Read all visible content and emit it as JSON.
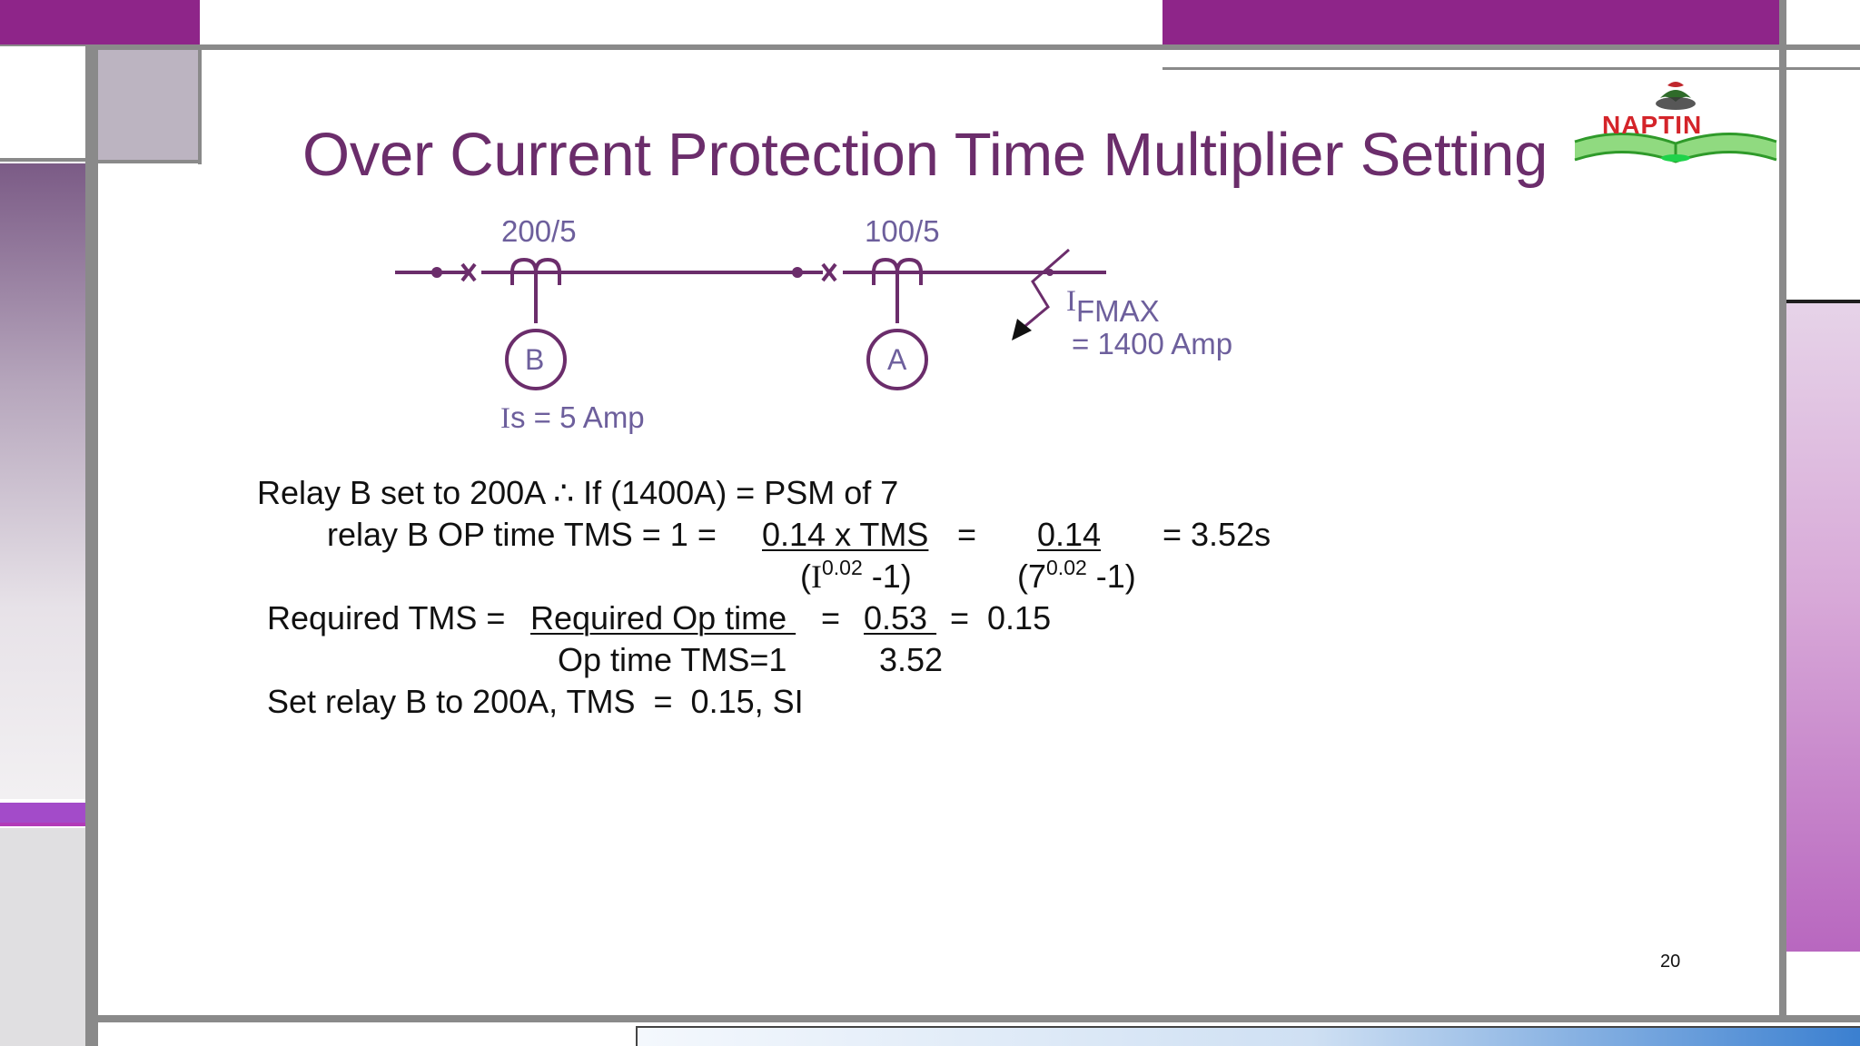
{
  "slide": {
    "title": "Over Current Protection Time Multiplier Setting",
    "page_number": "20",
    "logo_text": "NAPTIN",
    "colors": {
      "accent_purple": "#8e2589",
      "title_color": "#6b2d6b",
      "diagram_color": "#6b2d6b",
      "label_color": "#6d5f9c"
    }
  },
  "diagram": {
    "ct_b_ratio": "200/5",
    "ct_a_ratio": "100/5",
    "relay_b": "B",
    "relay_a": "A",
    "fault_symbol": "I",
    "fault_subscript": "FMAX",
    "fault_value": "= 1400 Amp",
    "is_symbol": "I",
    "is_label": "s = 5 Amp"
  },
  "equations": {
    "line1": "Relay B set to 200A ∴ If (1400A) = PSM of 7",
    "line2_prefix": "relay B OP time TMS = 1 = ",
    "line2_num1": "0.14 x TMS",
    "line2_eq": "=",
    "line2_num2": "0.14",
    "line2_result": "= 3.52s",
    "line3_den1_open": "(",
    "line3_den1_i": "I",
    "line3_den1_exp": "0.02",
    "line3_den1_close": " -1)",
    "line3_den2_open": "(7",
    "line3_den2_exp": "0.02",
    "line3_den2_close": " -1)",
    "line4_prefix": "Required TMS = ",
    "line4_num1": "Required Op time ",
    "line4_eq1": " = ",
    "line4_num2": "0.53 ",
    "line4_eq2": " =  0.15",
    "line5_den1": "Op time TMS=1",
    "line5_den2": "3.52",
    "line6": "Set relay B to 200A, TMS  =  0.15, SI"
  }
}
